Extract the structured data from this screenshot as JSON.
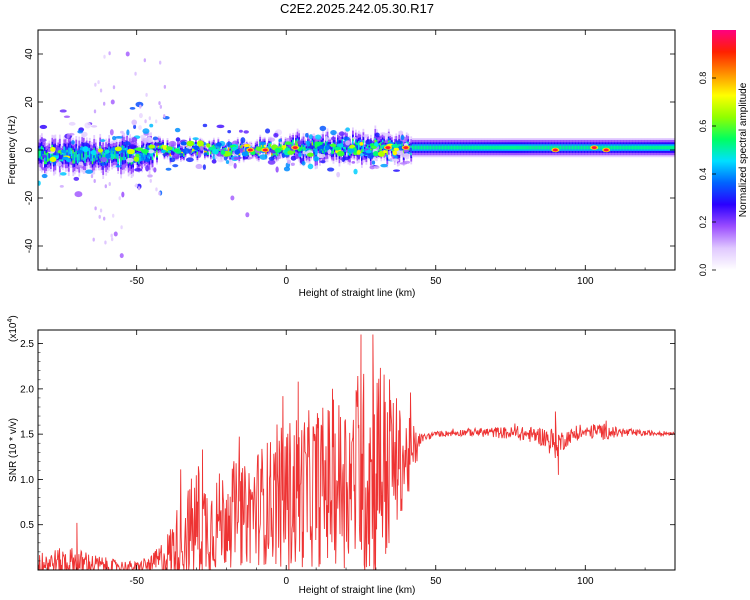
{
  "title": "C2E2.2025.242.05.30.R17",
  "chart_data": [
    {
      "type": "heatmap",
      "xlabel": "Height of straight line (km)",
      "ylabel": "Frequency (Hz)",
      "xlim": [
        -83,
        130
      ],
      "ylim": [
        -50,
        50
      ],
      "xticks": [
        -50,
        0,
        50,
        100
      ],
      "yticks": [
        -40,
        -20,
        0,
        20,
        40
      ],
      "colorbar": {
        "label": "Normalized spectral amplitude",
        "range": [
          0,
          1
        ],
        "ticks": [
          "0.0",
          "0.2",
          "0.4",
          "0.6",
          "0.8"
        ],
        "colors": [
          "#ffffff",
          "#e0c8ff",
          "#9b4dff",
          "#2a00ff",
          "#0064ff",
          "#00e0ff",
          "#00ff60",
          "#90ff00",
          "#ffff00",
          "#ff9000",
          "#ff2000",
          "#ff0080"
        ]
      },
      "band": {
        "segments": [
          {
            "x": [
              -83,
              -45
            ],
            "center_hz": -2,
            "halfwidth_hz": 6,
            "peak": 0.45
          },
          {
            "x": [
              -45,
              0
            ],
            "center_hz": 0,
            "halfwidth_hz": 3,
            "peak": 0.7
          },
          {
            "x": [
              0,
              40
            ],
            "center_hz": 1,
            "halfwidth_hz": 5,
            "peak": 0.55
          },
          {
            "x": [
              40,
              130
            ],
            "center_hz": 1,
            "halfwidth_hz": 4,
            "peak": 0.45
          }
        ],
        "hotspots": [
          [
            -12,
            0
          ],
          [
            -7,
            0
          ],
          [
            3,
            1
          ],
          [
            34,
            1
          ],
          [
            40,
            1
          ],
          [
            90,
            0
          ],
          [
            103,
            1
          ],
          [
            107,
            0
          ]
        ]
      },
      "outliers": [
        [
          -58,
          20
        ],
        [
          -53,
          40
        ],
        [
          -18,
          -20
        ],
        [
          -13,
          -27
        ],
        [
          -57,
          -35
        ],
        [
          -55,
          -44
        ]
      ]
    },
    {
      "type": "line",
      "xlabel": "Height of straight line (km)",
      "ylabel": "SNR (10 * v/v)",
      "y_multiplier": "(x10",
      "y_multiplier_exp": "4",
      "y_multiplier_close": ")",
      "xlim": [
        -83,
        130
      ],
      "ylim": [
        0,
        2.65
      ],
      "xticks": [
        -50,
        0,
        50,
        100
      ],
      "yticks": [
        0.5,
        1.0,
        1.5,
        2.0,
        2.5
      ],
      "color": "#ee3333",
      "envelope": {
        "x": [
          -83,
          -78,
          -72,
          -65,
          -58,
          -50,
          -45,
          -40,
          -36,
          -33,
          -30,
          -26,
          -22,
          -18,
          -14,
          -10,
          -6,
          -3,
          0,
          3,
          6,
          10,
          14,
          18,
          22,
          26,
          30,
          34,
          38,
          42,
          45,
          50,
          60,
          70,
          80,
          85,
          90,
          92,
          95,
          100,
          105,
          110,
          120,
          130
        ],
        "base": [
          0.05,
          0.08,
          0.08,
          0.06,
          0.04,
          0.03,
          0.06,
          0.15,
          0.3,
          0.4,
          0.5,
          0.48,
          0.55,
          0.62,
          0.6,
          0.7,
          0.75,
          0.78,
          0.8,
          0.85,
          0.88,
          0.92,
          0.95,
          0.98,
          1.0,
          1.05,
          1.1,
          1.15,
          1.2,
          1.25,
          1.45,
          1.5,
          1.52,
          1.52,
          1.5,
          1.48,
          1.4,
          1.42,
          1.48,
          1.52,
          1.53,
          1.52,
          1.51,
          1.51
        ],
        "amp": [
          0.12,
          0.15,
          0.18,
          0.12,
          0.08,
          0.06,
          0.1,
          0.25,
          0.45,
          0.55,
          0.65,
          0.55,
          0.55,
          0.6,
          0.55,
          0.65,
          0.7,
          0.75,
          0.85,
          0.9,
          0.85,
          0.9,
          0.9,
          0.95,
          1.0,
          1.2,
          1.3,
          1.1,
          0.6,
          0.4,
          0.05,
          0.03,
          0.04,
          0.06,
          0.08,
          0.1,
          0.18,
          0.12,
          0.08,
          0.06,
          0.1,
          0.06,
          0.03,
          0.02
        ]
      },
      "peaks": [
        [
          -70,
          0.52
        ],
        [
          -28,
          1.33
        ],
        [
          4,
          2.08
        ],
        [
          25,
          2.6
        ],
        [
          29,
          2.6
        ],
        [
          90,
          1.75
        ],
        [
          91,
          1.05
        ],
        [
          107,
          1.65
        ]
      ]
    }
  ]
}
